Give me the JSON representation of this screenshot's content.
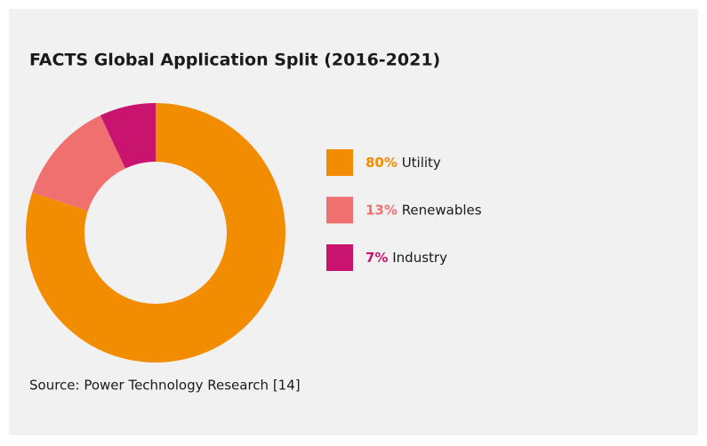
{
  "chart_data": {
    "type": "pie",
    "donut": true,
    "title": "FACTS Global Application Split (2016-2021)",
    "categories": [
      "Utility",
      "Renewables",
      "Industry"
    ],
    "values": [
      80,
      13,
      7
    ],
    "value_labels": [
      "80%",
      "13%",
      "7%"
    ],
    "colors": [
      "#f28c00",
      "#f07070",
      "#c8146e"
    ],
    "source": "Source: Power Technology Research [14]"
  }
}
